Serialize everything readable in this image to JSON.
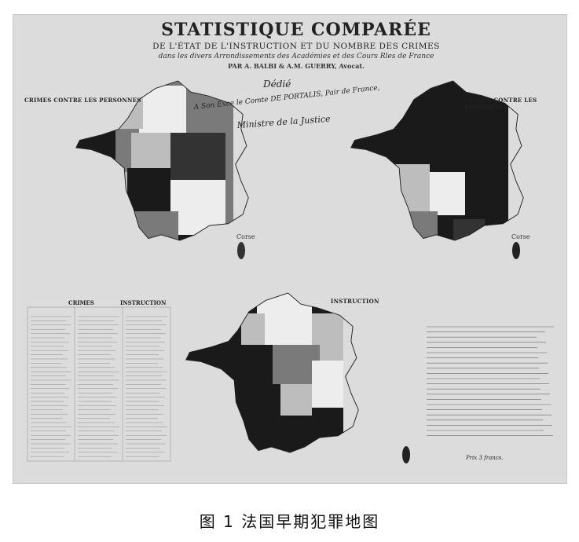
{
  "plate": {
    "title": "STATISTIQUE COMPARÉE",
    "subtitle": "DE L'ÉTAT DE L'INSTRUCTION ET DU NOMBRE DES CRIMES",
    "subtitle2": "dans les divers Arrondissements des Académies et des Cours Rles de France",
    "authors": "PAR A. BALBI & A.M. GUERRY, Avocat.",
    "dedication_1": "Dédié",
    "dedication_2": "A Son Exce le Comte DE PORTALIS, Pair de France,",
    "dedication_3": "Ministre de la Justice",
    "map_labels": {
      "personnes": "CRIMES CONTRE LES PERSONNES",
      "proprietes": "CRIMES CONTRE LES PROPRIÉTÉS",
      "instruction": "INSTRUCTION"
    },
    "corse_label": "Corse",
    "table_heads": {
      "crimes": "CRIMES",
      "instruction": "INSTRUCTION"
    },
    "price": "Prix 3 francs."
  },
  "caption": "图 1   法国早期犯罪地图",
  "colors": {
    "plate_bg": "#dcdcdc",
    "dark": "#1a1a1a",
    "dark2": "#333333",
    "mid": "#7a7a7a",
    "light": "#bdbdbd",
    "pale": "#ededed"
  }
}
